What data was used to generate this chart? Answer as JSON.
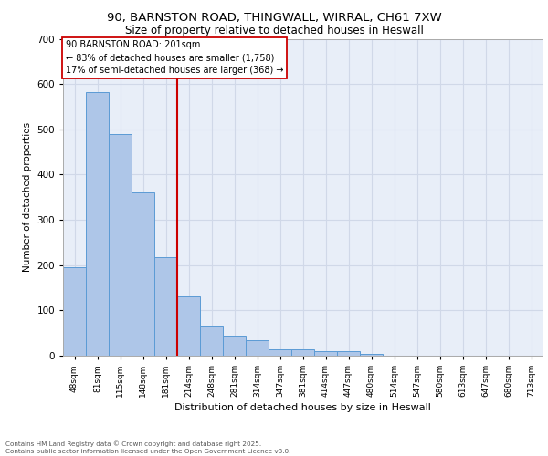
{
  "title_line1": "90, BARNSTON ROAD, THINGWALL, WIRRAL, CH61 7XW",
  "title_line2": "Size of property relative to detached houses in Heswall",
  "xlabel": "Distribution of detached houses by size in Heswall",
  "ylabel": "Number of detached properties",
  "bar_categories": [
    "48sqm",
    "81sqm",
    "115sqm",
    "148sqm",
    "181sqm",
    "214sqm",
    "248sqm",
    "281sqm",
    "314sqm",
    "347sqm",
    "381sqm",
    "414sqm",
    "447sqm",
    "480sqm",
    "514sqm",
    "547sqm",
    "580sqm",
    "613sqm",
    "647sqm",
    "680sqm",
    "713sqm"
  ],
  "bar_values": [
    195,
    583,
    490,
    360,
    217,
    130,
    65,
    45,
    35,
    15,
    15,
    10,
    10,
    4,
    0,
    0,
    0,
    0,
    0,
    0,
    0
  ],
  "bar_color": "#aec6e8",
  "bar_edge_color": "#5b9bd5",
  "ylim": [
    0,
    700
  ],
  "yticks": [
    0,
    100,
    200,
    300,
    400,
    500,
    600,
    700
  ],
  "property_line_x": 4.5,
  "property_label": "90 BARNSTON ROAD: 201sqm",
  "annotation_line1": "← 83% of detached houses are smaller (1,758)",
  "annotation_line2": "17% of semi-detached houses are larger (368) →",
  "annotation_box_color": "#ffffff",
  "annotation_box_edge_color": "#cc0000",
  "red_line_color": "#cc0000",
  "grid_color": "#d0d8e8",
  "background_color": "#e8eef8",
  "footer_line1": "Contains HM Land Registry data © Crown copyright and database right 2025.",
  "footer_line2": "Contains public sector information licensed under the Open Government Licence v3.0."
}
